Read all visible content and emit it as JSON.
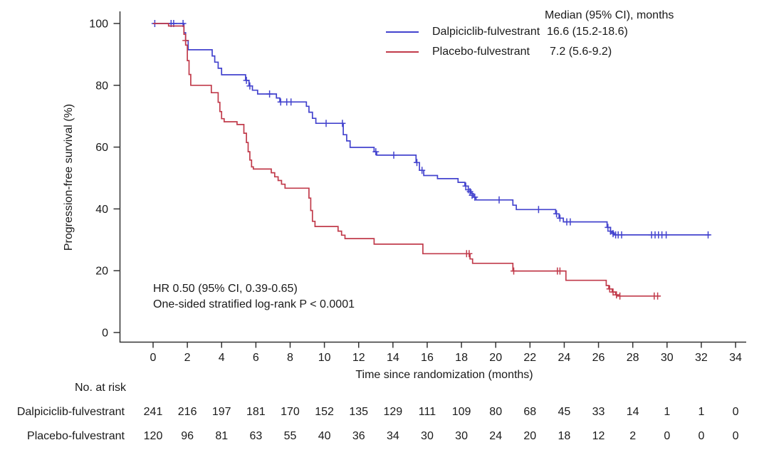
{
  "chart_data": {
    "type": "line",
    "subtype": "kaplan-meier-step",
    "title": "",
    "xlabel": "Time since randomization (months)",
    "ylabel": "Progression-free survival (%)",
    "xlim": [
      0,
      34
    ],
    "ylim": [
      0,
      100
    ],
    "xticks": [
      0,
      2,
      4,
      6,
      8,
      10,
      12,
      14,
      16,
      18,
      20,
      22,
      24,
      26,
      28,
      30,
      32,
      34
    ],
    "yticks": [
      0,
      20,
      40,
      60,
      80,
      100
    ],
    "grid": false,
    "legend_position": "top-right-inside",
    "legend": {
      "header": "Median (95% CI), months",
      "entries": [
        {
          "label": "Dalpiciclib-fulvestrant",
          "median": "16.6 (15.2-18.6)",
          "color": "#4343ce"
        },
        {
          "label": "Placebo-fulvestrant",
          "median": "7.2 (5.6-9.2)",
          "color": "#c13b4b"
        }
      ]
    },
    "annotation": {
      "line1": "HR 0.50 (95% CI, 0.39-0.65)",
      "line2": "One-sided stratified log-rank P < 0.0001"
    },
    "series": [
      {
        "name": "Dalpiciclib-fulvestrant",
        "color": "#4343ce",
        "end": 32.5,
        "steps": [
          [
            0,
            100
          ],
          [
            1.8,
            97
          ],
          [
            1.9,
            94.5
          ],
          [
            2.05,
            91.5
          ],
          [
            3.45,
            89.5
          ],
          [
            3.6,
            87.5
          ],
          [
            3.8,
            85.5
          ],
          [
            4.0,
            83.4
          ],
          [
            5.4,
            81.6
          ],
          [
            5.6,
            79.8
          ],
          [
            5.8,
            78.4
          ],
          [
            6.1,
            77.2
          ],
          [
            7.2,
            75.9
          ],
          [
            7.4,
            74.6
          ],
          [
            8.95,
            73.2
          ],
          [
            9.1,
            71.3
          ],
          [
            9.3,
            69.3
          ],
          [
            9.5,
            67.7
          ],
          [
            11.1,
            64.0
          ],
          [
            11.3,
            62.0
          ],
          [
            11.5,
            59.9
          ],
          [
            12.9,
            58.5
          ],
          [
            13.05,
            57.4
          ],
          [
            15.35,
            55.0
          ],
          [
            15.55,
            52.5
          ],
          [
            15.8,
            50.8
          ],
          [
            16.6,
            49.8
          ],
          [
            17.8,
            48.6
          ],
          [
            18.2,
            47.4
          ],
          [
            18.4,
            46.2
          ],
          [
            18.55,
            45.0
          ],
          [
            18.7,
            43.8
          ],
          [
            18.85,
            42.9
          ],
          [
            21.0,
            41.2
          ],
          [
            21.2,
            39.8
          ],
          [
            23.5,
            38.4
          ],
          [
            23.7,
            37.0
          ],
          [
            23.95,
            35.8
          ],
          [
            26.5,
            34.0
          ],
          [
            26.7,
            32.4
          ],
          [
            26.9,
            31.6
          ]
        ],
        "censors": [
          [
            0.1,
            100
          ],
          [
            1.05,
            100
          ],
          [
            1.2,
            100
          ],
          [
            1.75,
            100
          ],
          [
            5.45,
            81.6
          ],
          [
            5.65,
            79.8
          ],
          [
            6.8,
            77.2
          ],
          [
            7.45,
            74.6
          ],
          [
            7.8,
            74.6
          ],
          [
            8.05,
            74.6
          ],
          [
            10.1,
            67.7
          ],
          [
            11.05,
            67.7
          ],
          [
            13.0,
            58.5
          ],
          [
            14.05,
            57.4
          ],
          [
            15.4,
            55.0
          ],
          [
            15.7,
            52.5
          ],
          [
            18.25,
            47.4
          ],
          [
            18.4,
            46.2
          ],
          [
            18.5,
            45.6
          ],
          [
            18.62,
            44.4
          ],
          [
            18.78,
            43.8
          ],
          [
            20.2,
            42.9
          ],
          [
            22.5,
            39.8
          ],
          [
            23.55,
            38.4
          ],
          [
            23.75,
            37.0
          ],
          [
            24.15,
            35.8
          ],
          [
            24.35,
            35.8
          ],
          [
            26.55,
            34.0
          ],
          [
            26.7,
            32.8
          ],
          [
            26.85,
            32.0
          ],
          [
            27.0,
            31.6
          ],
          [
            27.15,
            31.6
          ],
          [
            27.35,
            31.6
          ],
          [
            29.1,
            31.6
          ],
          [
            29.3,
            31.6
          ],
          [
            29.5,
            31.6
          ],
          [
            29.7,
            31.6
          ],
          [
            29.95,
            31.6
          ],
          [
            32.4,
            31.6
          ]
        ]
      },
      {
        "name": "Placebo-fulvestrant",
        "color": "#c13b4b",
        "end": 29.6,
        "steps": [
          [
            0,
            100
          ],
          [
            0.9,
            99.2
          ],
          [
            1.8,
            96.5
          ],
          [
            1.9,
            93.0
          ],
          [
            2.0,
            88.0
          ],
          [
            2.1,
            83.5
          ],
          [
            2.2,
            80.0
          ],
          [
            3.4,
            77.6
          ],
          [
            3.8,
            74.5
          ],
          [
            3.9,
            71.5
          ],
          [
            4.0,
            69.2
          ],
          [
            4.15,
            68.2
          ],
          [
            4.9,
            67.3
          ],
          [
            5.3,
            64.5
          ],
          [
            5.45,
            61.5
          ],
          [
            5.55,
            58.5
          ],
          [
            5.65,
            55.8
          ],
          [
            5.75,
            53.6
          ],
          [
            5.85,
            52.9
          ],
          [
            6.9,
            51.7
          ],
          [
            7.1,
            50.4
          ],
          [
            7.3,
            49.2
          ],
          [
            7.5,
            48.0
          ],
          [
            7.7,
            46.7
          ],
          [
            9.1,
            43.5
          ],
          [
            9.2,
            39.5
          ],
          [
            9.3,
            36.0
          ],
          [
            9.45,
            34.3
          ],
          [
            10.8,
            32.8
          ],
          [
            11.0,
            31.5
          ],
          [
            11.2,
            30.4
          ],
          [
            12.9,
            28.6
          ],
          [
            15.75,
            25.5
          ],
          [
            18.5,
            23.8
          ],
          [
            18.65,
            22.4
          ],
          [
            21.0,
            19.9
          ],
          [
            24.1,
            16.9
          ],
          [
            26.45,
            15.2
          ],
          [
            26.6,
            14.1
          ],
          [
            26.8,
            13.1
          ],
          [
            27.0,
            12.2
          ],
          [
            27.15,
            11.8
          ]
        ],
        "censors": [
          [
            1.9,
            94.5
          ],
          [
            18.3,
            25.5
          ],
          [
            18.45,
            25.5
          ],
          [
            21.05,
            19.9
          ],
          [
            23.6,
            19.9
          ],
          [
            23.75,
            19.9
          ],
          [
            26.65,
            14.1
          ],
          [
            26.85,
            13.1
          ],
          [
            27.05,
            12.2
          ],
          [
            27.25,
            11.8
          ],
          [
            29.25,
            11.8
          ],
          [
            29.45,
            11.8
          ]
        ]
      }
    ],
    "at_risk": {
      "title": "No. at risk",
      "rows": [
        {
          "label": "Dalpiciclib-fulvestrant",
          "counts": [
            241,
            216,
            197,
            181,
            170,
            152,
            135,
            129,
            111,
            109,
            80,
            68,
            45,
            33,
            14,
            1,
            1,
            0
          ]
        },
        {
          "label": "Placebo-fulvestrant",
          "counts": [
            120,
            96,
            81,
            63,
            55,
            40,
            36,
            34,
            30,
            30,
            24,
            20,
            18,
            12,
            2,
            0,
            0,
            0
          ]
        }
      ]
    }
  }
}
